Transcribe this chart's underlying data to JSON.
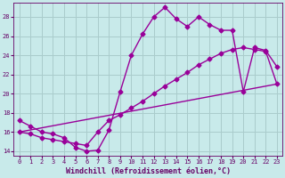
{
  "xlabel": "Windchill (Refroidissement éolien,°C)",
  "background_color": "#c8eaea",
  "grid_color": "#aacccc",
  "line_color": "#990099",
  "markersize": 2.5,
  "linewidth": 1.0,
  "xlim": [
    -0.5,
    23.5
  ],
  "ylim": [
    13.5,
    29.5
  ],
  "xticks": [
    0,
    1,
    2,
    3,
    4,
    5,
    6,
    7,
    8,
    9,
    10,
    11,
    12,
    13,
    14,
    15,
    16,
    17,
    18,
    19,
    20,
    21,
    22,
    23
  ],
  "yticks": [
    14,
    16,
    18,
    20,
    22,
    24,
    26,
    28
  ],
  "line1_x": [
    0,
    1,
    2,
    3,
    4,
    5,
    6,
    7,
    8,
    9,
    10,
    11,
    12,
    13,
    14,
    15,
    16,
    17,
    18,
    19,
    20,
    21,
    22,
    23
  ],
  "line1_y": [
    17.2,
    16.6,
    16.0,
    15.8,
    15.4,
    14.4,
    14.0,
    14.1,
    16.2,
    20.2,
    24.0,
    26.2,
    28.0,
    29.0,
    27.8,
    27.0,
    28.0,
    27.2,
    26.6,
    26.6,
    20.2,
    24.8,
    24.5,
    22.8
  ],
  "line2_x": [
    0,
    1,
    2,
    3,
    4,
    5,
    6,
    7,
    8,
    9,
    10,
    11,
    12,
    13,
    14,
    15,
    16,
    17,
    18,
    19,
    20,
    21,
    22,
    23
  ],
  "line2_y": [
    16.0,
    15.8,
    15.4,
    15.2,
    15.0,
    14.8,
    14.6,
    16.0,
    17.2,
    17.8,
    18.5,
    19.2,
    20.0,
    20.8,
    21.5,
    22.2,
    23.0,
    23.6,
    24.2,
    24.6,
    24.8,
    24.6,
    24.4,
    21.0
  ],
  "line3_x": [
    0,
    23
  ],
  "line3_y": [
    16.0,
    21.0
  ],
  "font_color": "#660066",
  "tick_fontsize": 5.0,
  "label_fontsize": 6.0
}
